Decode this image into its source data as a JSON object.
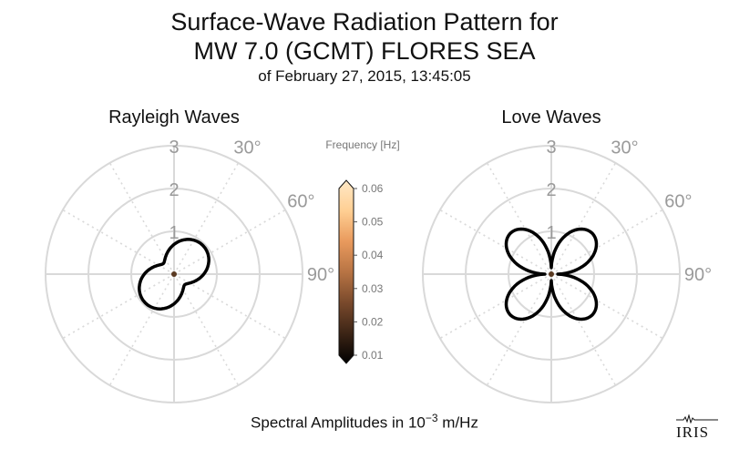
{
  "title": {
    "line1": "Surface-Wave Radiation Pattern for",
    "line2": "MW 7.0 (GCMT) FLORES SEA",
    "line3": "of February 27, 2015, 13:45:05"
  },
  "footer": {
    "prefix": "Spectral Amplitudes in 10",
    "exponent": "−3",
    "suffix": " m/Hz"
  },
  "logo_text": "IRIS",
  "colors": {
    "grid": "#d9d9d9",
    "tick_label": "#9a9a9a",
    "curve": "#000000",
    "center_marker": "#5a3a22",
    "colormap": [
      "#000000",
      "#3d2516",
      "#7a4a2c",
      "#b87444",
      "#e99a5d",
      "#ffcf93",
      "#ffe9c7"
    ]
  },
  "chart_data": [
    {
      "type": "polar-line",
      "title": "Rayleigh Waves",
      "radial_ticks": [
        "1",
        "2",
        "3"
      ],
      "rmax": 3,
      "angle_ticks": [
        "30°",
        "60°",
        "90°"
      ],
      "zero_direction": "N",
      "direction": "clockwise",
      "grid": true,
      "series": [
        {
          "lobes": [
            {
              "azimuth_deg": 45,
              "amplitude": 0.95
            },
            {
              "azimuth_deg": 225,
              "amplitude": 0.95
            }
          ],
          "min_amplitude": 0.35,
          "frequency_hz": 0.01
        }
      ]
    },
    {
      "type": "polar-line",
      "title": "Love Waves",
      "radial_ticks": [
        "1",
        "2",
        "3"
      ],
      "rmax": 3,
      "angle_ticks": [
        "30°",
        "60°",
        "90°"
      ],
      "zero_direction": "N",
      "direction": "clockwise",
      "grid": true,
      "series": [
        {
          "lobes": [
            {
              "azimuth_deg": 45,
              "amplitude": 1.35
            },
            {
              "azimuth_deg": 135,
              "amplitude": 1.35
            },
            {
              "azimuth_deg": 225,
              "amplitude": 1.35
            },
            {
              "azimuth_deg": 315,
              "amplitude": 1.35
            }
          ],
          "min_amplitude": 0.15,
          "frequency_hz": 0.01
        }
      ]
    },
    {
      "type": "colorbar",
      "label": "Frequency [Hz]",
      "range": [
        0.01,
        0.06
      ],
      "ticks": [
        "0.06",
        "0.05",
        "0.04",
        "0.03",
        "0.02",
        "0.01"
      ],
      "extend": "both"
    }
  ]
}
